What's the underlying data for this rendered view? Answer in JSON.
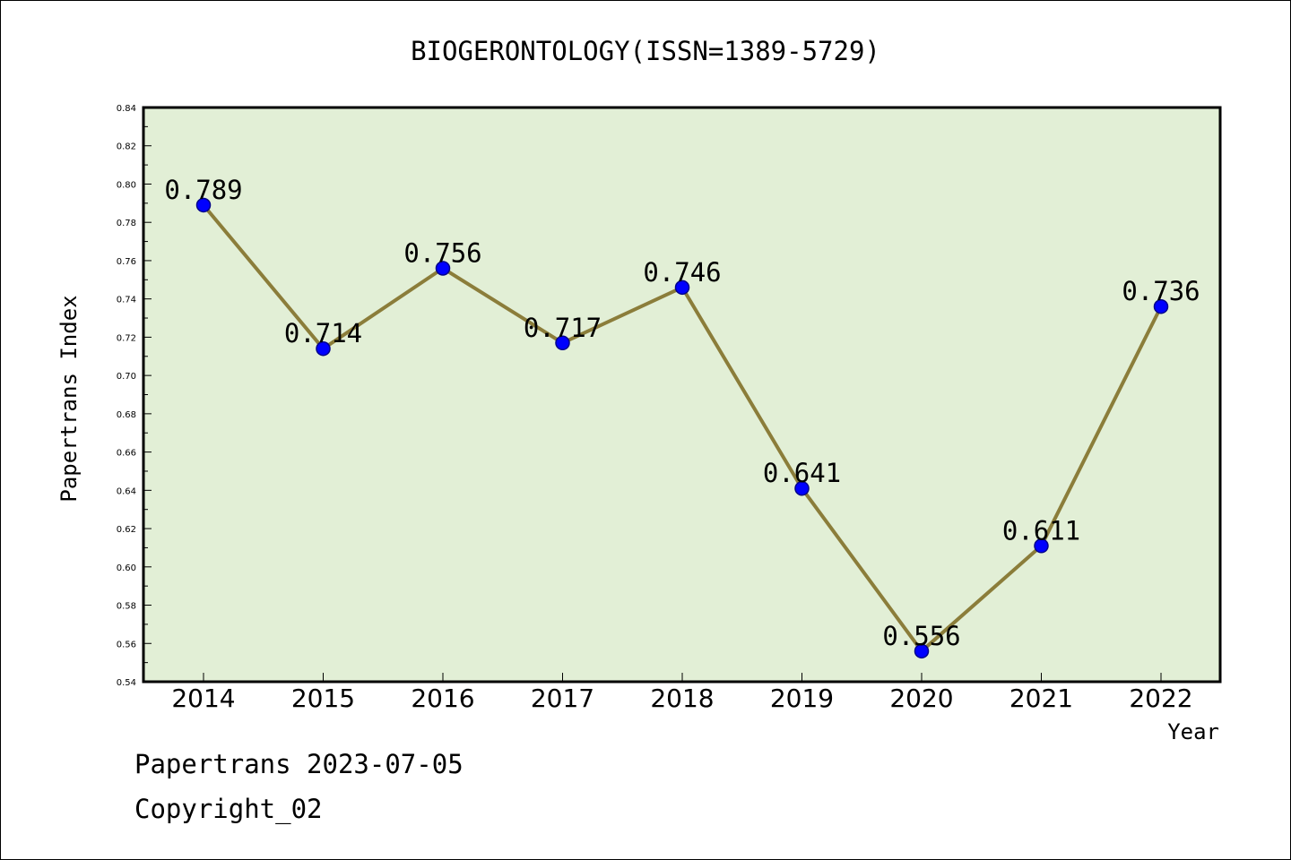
{
  "chart_data": {
    "type": "line",
    "title": "BIOGERONTOLOGY(ISSN=1389-5729)",
    "xlabel": "Year",
    "ylabel": "Papertrans Index",
    "categories": [
      "2014",
      "2015",
      "2016",
      "2017",
      "2018",
      "2019",
      "2020",
      "2021",
      "2022"
    ],
    "series": [
      {
        "values": [
          0.789,
          0.714,
          0.756,
          0.717,
          0.746,
          0.641,
          0.556,
          0.611,
          0.736
        ],
        "data_labels": [
          "0.789",
          "0.714",
          "0.756",
          "0.717",
          "0.746",
          "0.641",
          "0.556",
          "0.611",
          "0.736"
        ]
      }
    ],
    "ylim": [
      0.54,
      0.84
    ],
    "y_ticks": [
      "0.54",
      "0.56",
      "0.58",
      "0.60",
      "0.62",
      "0.64",
      "0.66",
      "0.68",
      "0.70",
      "0.72",
      "0.74",
      "0.76",
      "0.78",
      "0.80",
      "0.82",
      "0.84"
    ],
    "grid": false,
    "legend": "none",
    "colors": {
      "plot_background": "#e2efd6",
      "line": "#8b7d3a",
      "marker": "#0000ff",
      "marker_edge": "#00008b",
      "axes": "#000000"
    }
  },
  "footer": {
    "line1": "Papertrans 2023-07-05",
    "line2": "Copyright_02"
  }
}
